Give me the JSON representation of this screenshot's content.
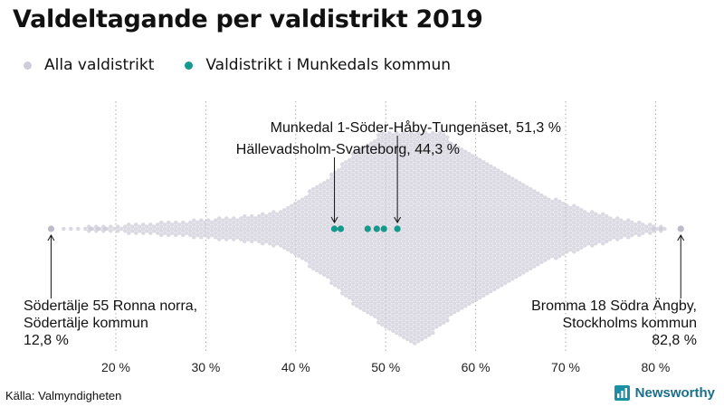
{
  "title": "Valdeltagande per valdistrikt 2019",
  "legend": {
    "all_label": "Alla valdistrikt",
    "highlight_label": "Valdistrikt i Munkedals kommun"
  },
  "colors": {
    "all": "#cfcdd9",
    "highlight": "#149a8c",
    "grid": "#aaaaaa"
  },
  "source": "Källa: Valmyndigheten",
  "brand": "Newsworthy",
  "chart_data": {
    "type": "scatter",
    "subtype": "beeswarm",
    "title": "Valdeltagande per valdistrikt 2019",
    "x_axis": {
      "range": [
        12,
        85
      ],
      "ticks": [
        20,
        30,
        40,
        50,
        60,
        70,
        80
      ],
      "tick_labels": [
        "20 %",
        "30 %",
        "40 %",
        "50 %",
        "60 %",
        "70 %",
        "80 %"
      ],
      "grid": true
    },
    "series": [
      {
        "name": "Alla valdistrikt",
        "distribution_peak": 53.5,
        "min": 12.8,
        "max": 82.8
      },
      {
        "name": "Valdistrikt i Munkedals kommun",
        "values": [
          44.3,
          45.0,
          48.0,
          49.0,
          49.8,
          51.3
        ]
      }
    ],
    "annotations": [
      {
        "lines": [
          "Munkedal 1-Söder-Håby-Tungenäset, 51,3 %"
        ],
        "value": 51.3
      },
      {
        "lines": [
          "Hällevadsholm-Svarteborg, 44,3 %"
        ],
        "value": 44.3
      },
      {
        "lines": [
          "Södertälje 55 Ronna norra,",
          "Södertälje kommun",
          "12,8 %"
        ],
        "value": 12.8
      },
      {
        "lines": [
          "Bromma 18 Södra Ängby,",
          "Stockholms kommun",
          "82,8 %"
        ],
        "value": 82.8
      }
    ]
  }
}
